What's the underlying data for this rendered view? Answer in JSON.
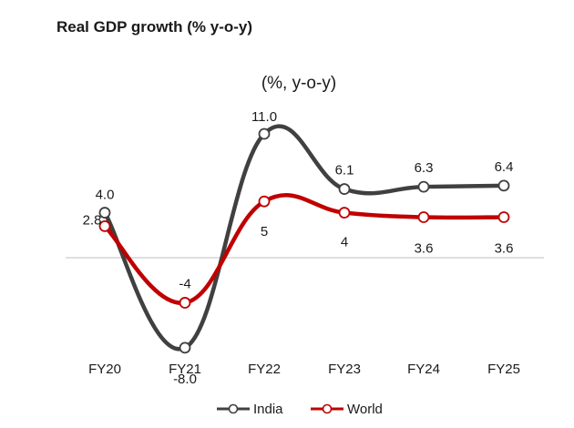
{
  "header": {
    "title": "Real GDP growth (% y-o-y)"
  },
  "chart_data": {
    "type": "line",
    "title": "(%, y-o-y)",
    "categories": [
      "FY20",
      "FY21",
      "FY22",
      "FY23",
      "FY24",
      "FY25"
    ],
    "series": [
      {
        "name": "India",
        "color": "#404040",
        "values": [
          4.0,
          -8.0,
          11.0,
          6.1,
          6.3,
          6.4
        ],
        "labels": [
          "4.0",
          "-8.0",
          "11.0",
          "6.1",
          "6.3",
          "6.4"
        ]
      },
      {
        "name": "World",
        "color": "#c00000",
        "values": [
          2.8,
          -4.0,
          5.0,
          4.0,
          3.6,
          3.6
        ],
        "labels": [
          "2.8",
          "-4",
          "5",
          "4",
          "3.6",
          "3.6"
        ]
      }
    ],
    "xlabel": "",
    "ylabel": "",
    "ylim": [
      -8.0,
      11.0
    ],
    "legend": "bottom-center",
    "grid": false
  }
}
